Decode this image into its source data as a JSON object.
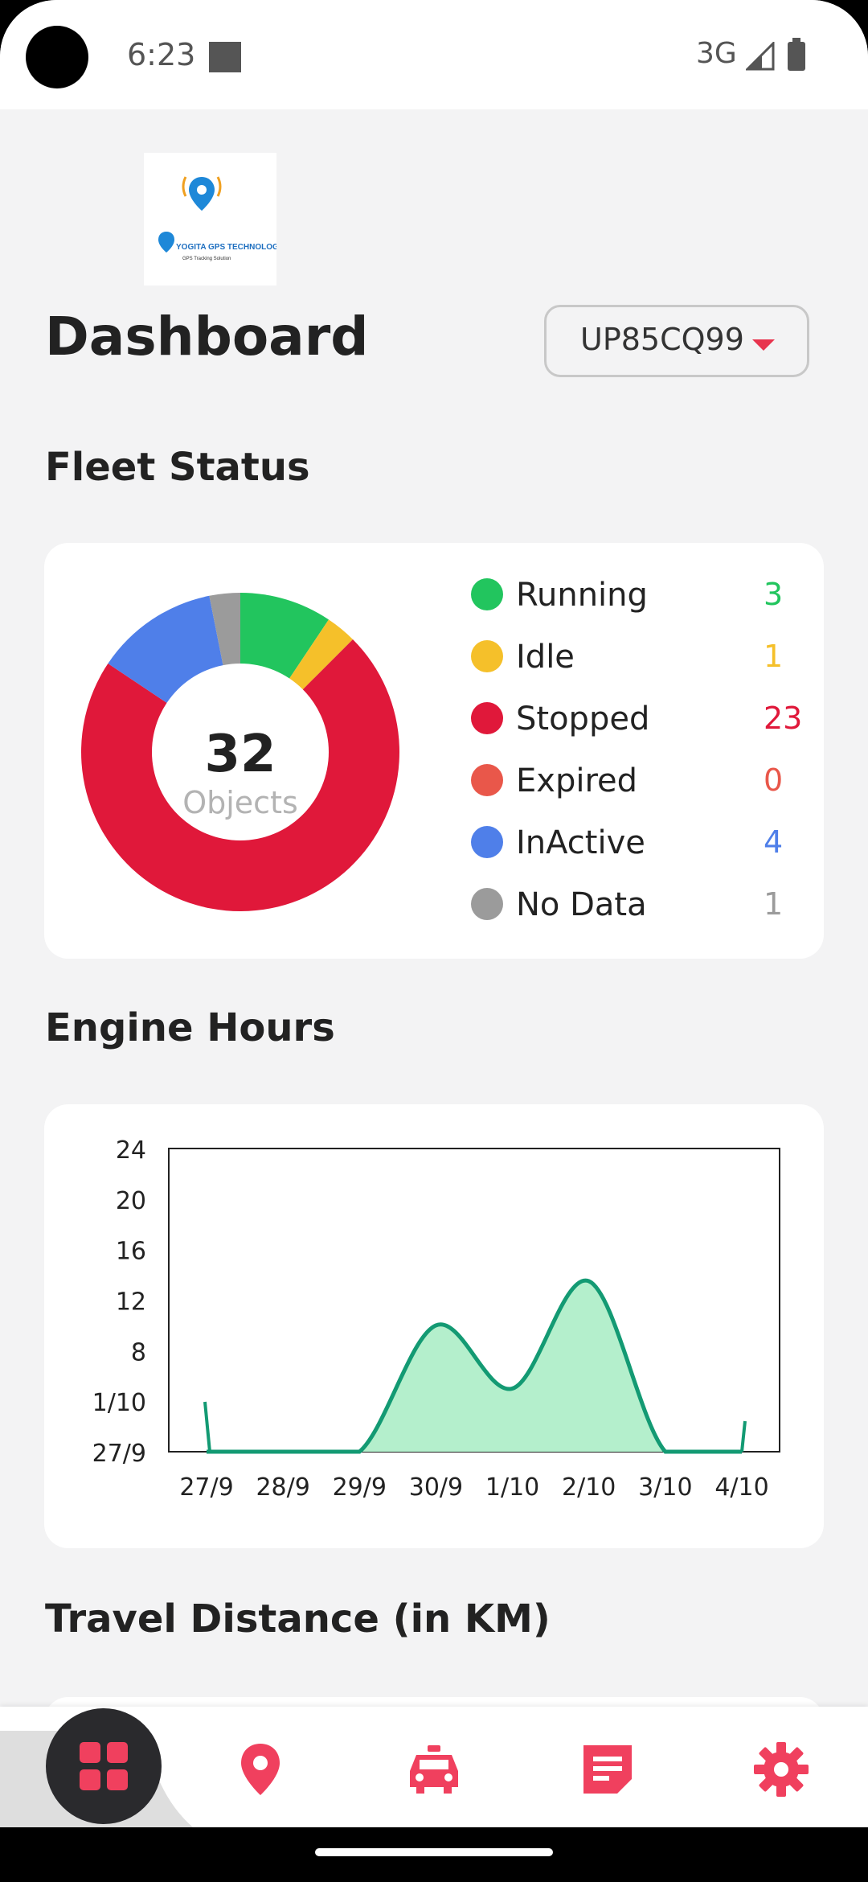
{
  "status_bar": {
    "time": "6:23",
    "network": "3G"
  },
  "header": {
    "logo": {
      "company": "YOGITA GPS TECHNOLOGY",
      "tagline": "GPS Tracking Solution"
    },
    "title": "Dashboard",
    "vehicle_select": {
      "value": "UP85CQ99"
    }
  },
  "fleet_status": {
    "title": "Fleet Status",
    "total": "32",
    "total_label": "Objects",
    "items": [
      {
        "label": "Running",
        "count": "3",
        "color": "#22c55e"
      },
      {
        "label": "Idle",
        "count": "1",
        "color": "#f5c02a"
      },
      {
        "label": "Stopped",
        "count": "23",
        "color": "#e0183a"
      },
      {
        "label": "Expired",
        "count": "0",
        "color": "#e9574a"
      },
      {
        "label": "InActive",
        "count": "4",
        "color": "#4f7fe9"
      },
      {
        "label": "No Data",
        "count": "1",
        "color": "#9b9b9b"
      }
    ]
  },
  "engine_hours": {
    "title": "Engine Hours"
  },
  "chart_data": {
    "type": "area",
    "x": [
      "27/9",
      "28/9",
      "29/9",
      "30/9",
      "1/10",
      "2/10",
      "3/10",
      "4/10"
    ],
    "y_tick_labels": [
      "27/9",
      "1/10",
      "8",
      "12",
      "16",
      "20",
      "24"
    ],
    "series": [
      {
        "values": [
          0,
          0,
          0,
          10,
          5,
          13.5,
          0,
          0
        ],
        "color": "#139a73",
        "fill": "#b4efcc"
      }
    ],
    "ylim": [
      0,
      24
    ],
    "grid": false
  },
  "travel_distance": {
    "title": "Travel Distance (in KM)"
  },
  "bottom_nav": {
    "items": [
      "dashboard",
      "location",
      "vehicles",
      "reports",
      "settings"
    ],
    "accent": "#f0405e"
  }
}
